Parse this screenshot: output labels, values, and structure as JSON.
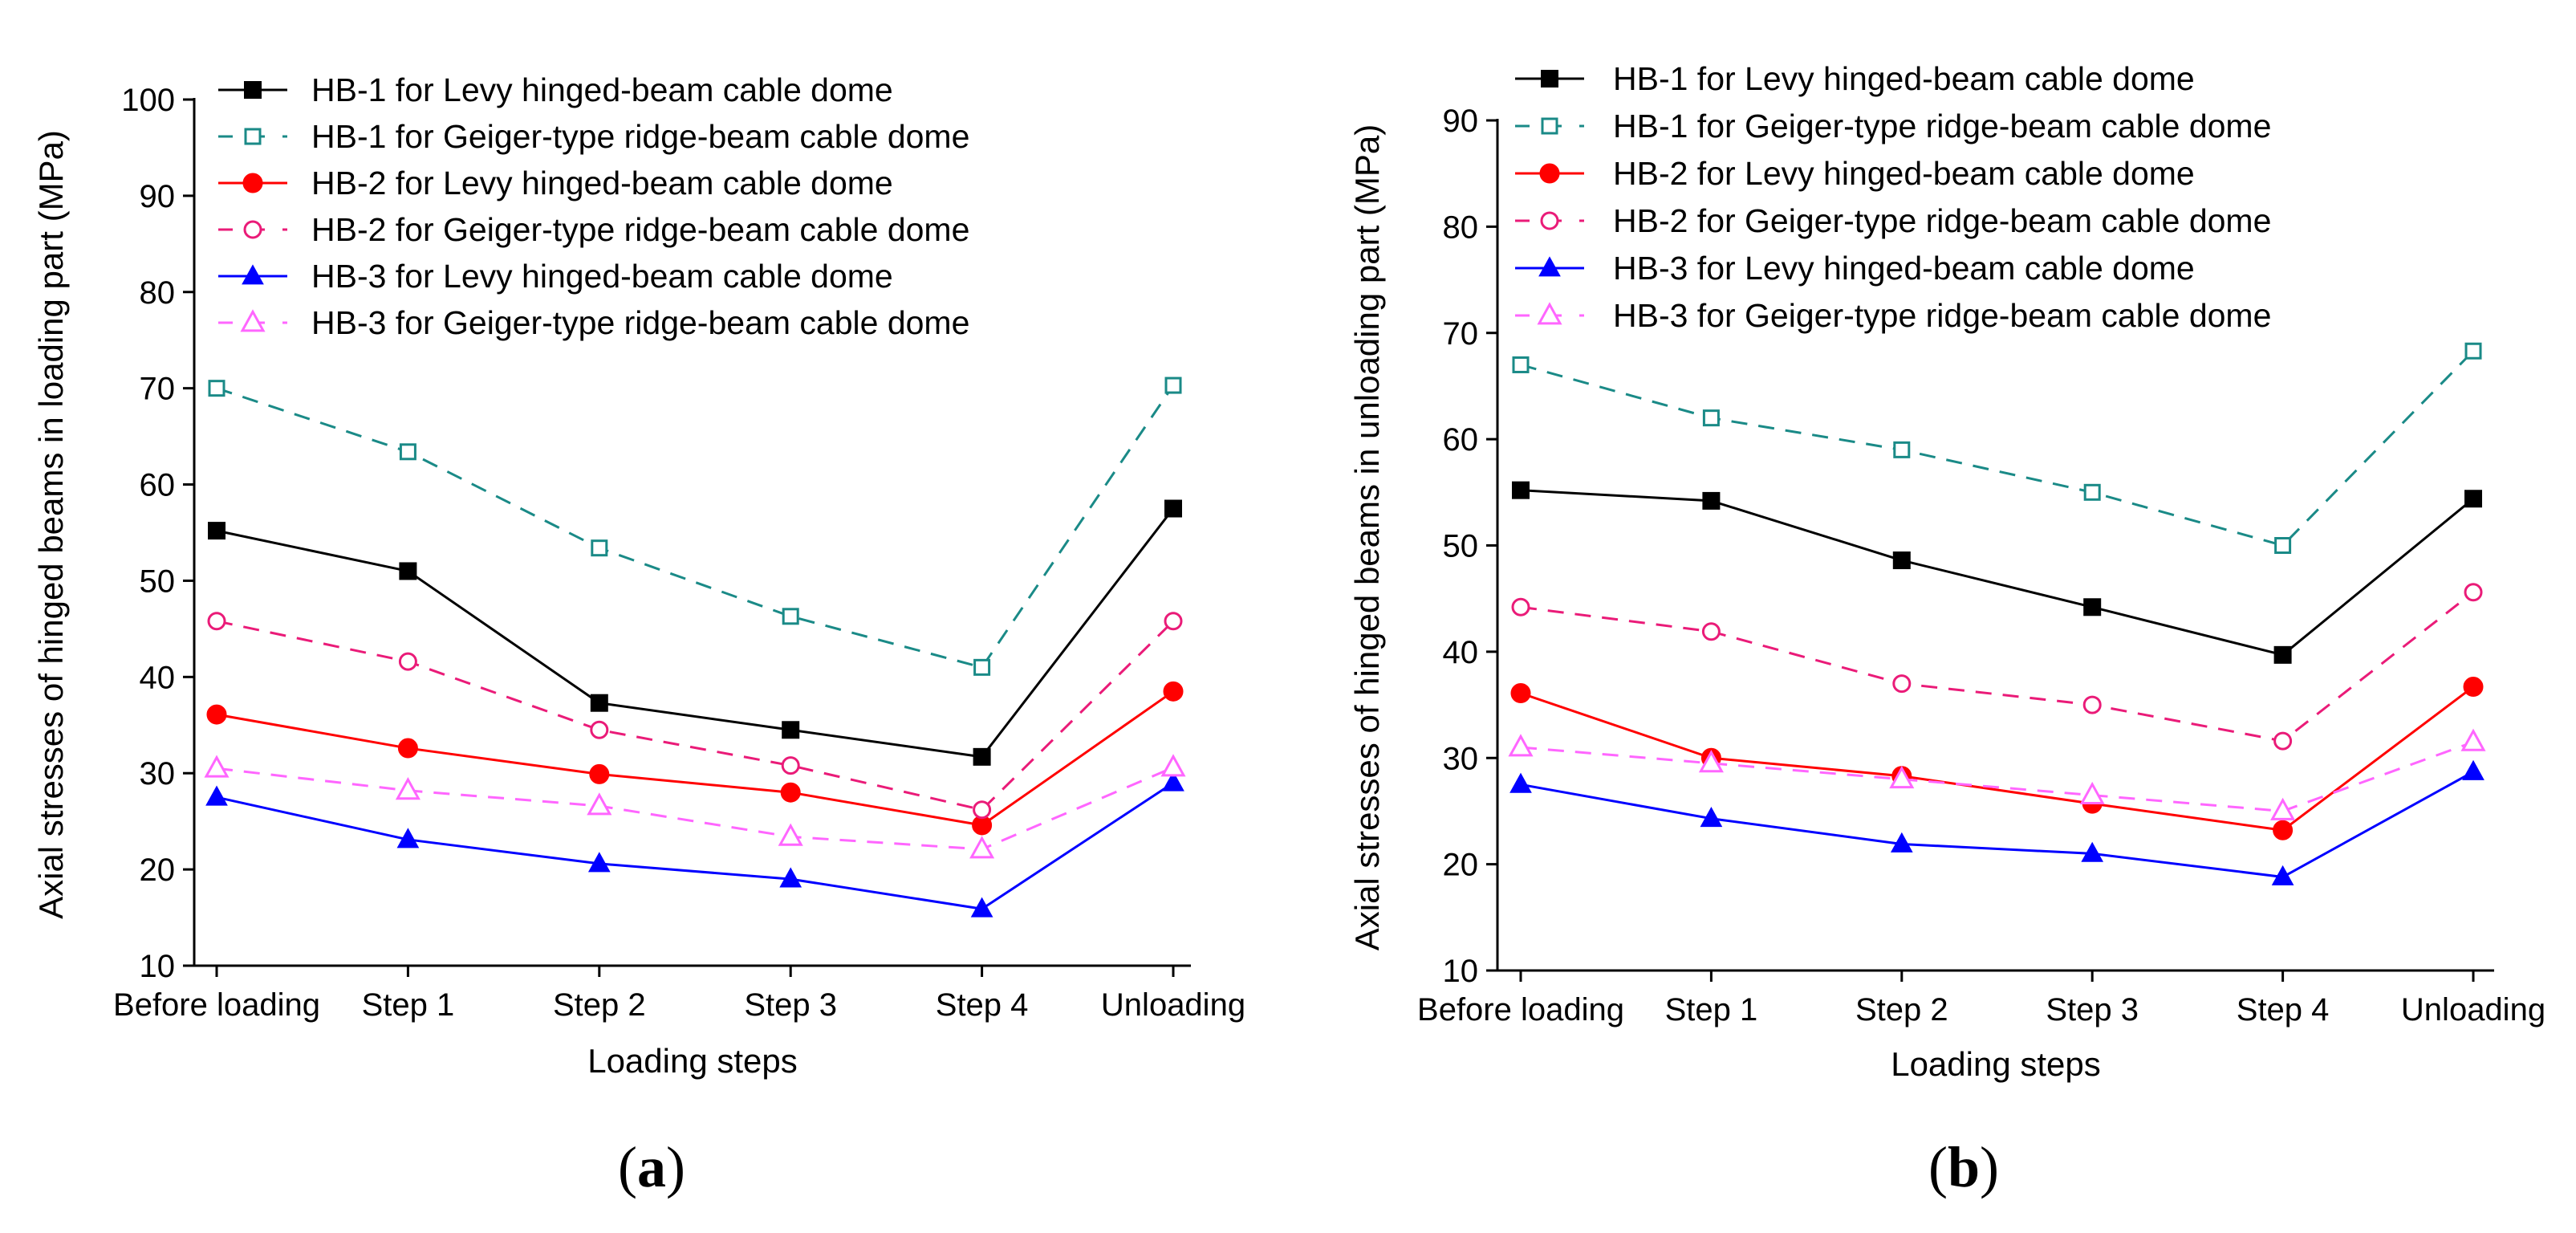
{
  "chart_data": [
    {
      "type": "line",
      "panel": "a",
      "panel_label": "a",
      "title": "",
      "xlabel": "Loading steps",
      "ylabel": "Axial stresses of hinged beams in loading part (MPa)",
      "categories": [
        "Before loading",
        "Step 1",
        "Step 2",
        "Step 3",
        "Step 4",
        "Unloading"
      ],
      "ylim": [
        10,
        100
      ],
      "yticks": [
        10,
        20,
        30,
        40,
        50,
        60,
        70,
        80,
        90,
        100
      ],
      "grid": false,
      "legend_position": "top-left",
      "series": [
        {
          "name": "HB-1 for Levy hinged-beam cable dome",
          "color": "#000000",
          "dash": "solid",
          "marker": "square-filled",
          "values": [
            55.2,
            51.0,
            37.3,
            34.5,
            31.7,
            57.5
          ]
        },
        {
          "name": "HB-1 for Geiger-type ridge-beam cable dome",
          "color": "#1a8a87",
          "dash": "dashed",
          "marker": "square-open",
          "values": [
            70.0,
            63.4,
            53.4,
            46.3,
            41.0,
            70.3
          ]
        },
        {
          "name": "HB-2 for Levy hinged-beam cable dome",
          "color": "#ff0000",
          "dash": "solid",
          "marker": "circle-filled",
          "values": [
            36.1,
            32.6,
            29.9,
            28.0,
            24.6,
            38.5
          ]
        },
        {
          "name": "HB-2 for Geiger-type ridge-beam cable dome",
          "color": "#ea1b78",
          "dash": "dashed",
          "marker": "circle-open",
          "values": [
            45.8,
            41.6,
            34.5,
            30.8,
            26.2,
            45.8
          ]
        },
        {
          "name": "HB-3 for Levy hinged-beam cable dome",
          "color": "#0000ff",
          "dash": "solid",
          "marker": "triangle-filled",
          "values": [
            27.5,
            23.1,
            20.6,
            19.0,
            15.9,
            29.0
          ]
        },
        {
          "name": "HB-3 for Geiger-type ridge-beam cable dome",
          "color": "#ff66ff",
          "dash": "dashed",
          "marker": "triangle-open",
          "values": [
            30.5,
            28.2,
            26.6,
            23.4,
            22.1,
            30.6
          ]
        }
      ]
    },
    {
      "type": "line",
      "panel": "b",
      "panel_label": "b",
      "title": "",
      "xlabel": "Loading steps",
      "ylabel": "Axial stresses of hinged beams in unloading part (MPa)",
      "categories": [
        "Before loading",
        "Step 1",
        "Step 2",
        "Step 3",
        "Step 4",
        "Unloading"
      ],
      "ylim": [
        10,
        90
      ],
      "yticks": [
        10,
        20,
        30,
        40,
        50,
        60,
        70,
        80,
        90
      ],
      "grid": false,
      "legend_position": "top-left",
      "series": [
        {
          "name": "HB-1 for Levy hinged-beam cable dome",
          "color": "#000000",
          "dash": "solid",
          "marker": "square-filled",
          "values": [
            55.2,
            54.2,
            48.6,
            44.2,
            39.7,
            54.4
          ]
        },
        {
          "name": "HB-1 for Geiger-type ridge-beam cable dome",
          "color": "#1a8a87",
          "dash": "dashed",
          "marker": "square-open",
          "values": [
            67.0,
            62.0,
            59.0,
            55.0,
            50.0,
            68.3
          ]
        },
        {
          "name": "HB-2 for Levy hinged-beam cable dome",
          "color": "#ff0000",
          "dash": "solid",
          "marker": "circle-filled",
          "values": [
            36.1,
            30.0,
            28.3,
            25.7,
            23.2,
            36.7
          ]
        },
        {
          "name": "HB-2 for Geiger-type ridge-beam cable dome",
          "color": "#ea1b78",
          "dash": "dashed",
          "marker": "circle-open",
          "values": [
            44.2,
            41.9,
            37.0,
            35.0,
            31.6,
            45.6
          ]
        },
        {
          "name": "HB-3 for Levy hinged-beam cable dome",
          "color": "#0000ff",
          "dash": "solid",
          "marker": "triangle-filled",
          "values": [
            27.5,
            24.3,
            21.9,
            21.0,
            18.8,
            28.7
          ]
        },
        {
          "name": "HB-3 for Geiger-type ridge-beam cable dome",
          "color": "#ff66ff",
          "dash": "dashed",
          "marker": "triangle-open",
          "values": [
            31.0,
            29.5,
            28.0,
            26.5,
            25.0,
            31.5
          ]
        }
      ]
    }
  ]
}
